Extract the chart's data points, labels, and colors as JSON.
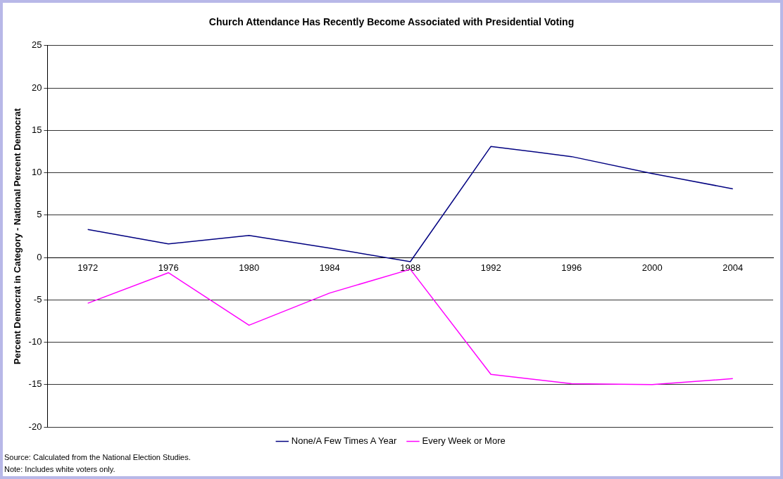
{
  "chart_data": {
    "type": "line",
    "title": "Church Attendance Has Recently Become Associated with Presidential Voting",
    "ylabel": "Percent Democrat in Category - National Percent Democrat",
    "categories": [
      "1972",
      "1976",
      "1980",
      "1984",
      "1988",
      "1992",
      "1996",
      "2000",
      "2004"
    ],
    "series": [
      {
        "name": "None/A Few Times A Year",
        "color": "#000080",
        "values": [
          3.3,
          1.6,
          2.6,
          1.1,
          -0.5,
          13.1,
          11.9,
          9.9,
          8.1
        ]
      },
      {
        "name": "Every Week or More",
        "color": "#ff00ff",
        "values": [
          -5.4,
          -1.8,
          -8.0,
          -4.2,
          -1.4,
          -13.8,
          -14.9,
          -15.0,
          -14.3
        ]
      }
    ],
    "ylim": [
      -20,
      25
    ],
    "yticks": [
      -20,
      -15,
      -10,
      -5,
      0,
      5,
      10,
      15,
      20,
      25
    ],
    "grid": "y",
    "legend": "bottom",
    "marker": "none",
    "line_style": "solid",
    "annotations": [
      "Source: Calculated from the National Election Studies.",
      "Note: Includes white voters only."
    ]
  }
}
